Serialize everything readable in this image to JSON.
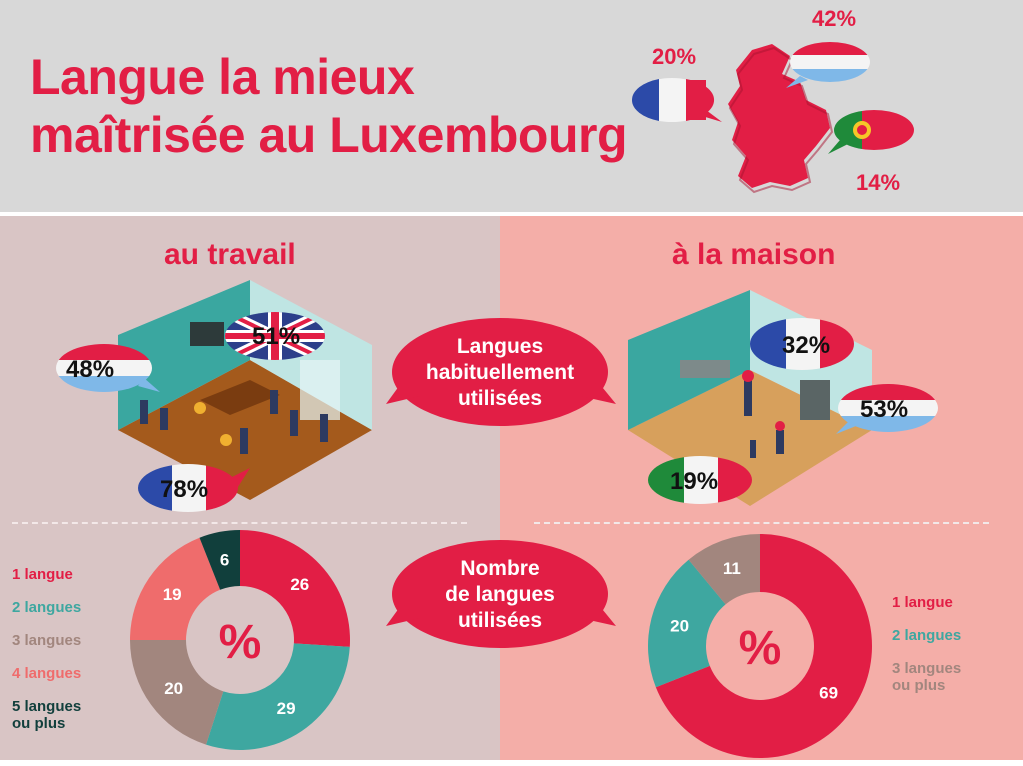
{
  "header": {
    "title_line1": "Langue la mieux",
    "title_line2": "maîtrisée au Luxembourg",
    "pct_fr": "20%",
    "pct_lu": "42%",
    "pct_pt": "14%"
  },
  "work": {
    "title": "au travail",
    "pct_en": "51%",
    "pct_lu": "48%",
    "pct_fr": "78%"
  },
  "home": {
    "title": "à la maison",
    "pct_fr": "32%",
    "pct_lu": "53%",
    "pct_pt": "19%"
  },
  "center": {
    "habitual_line1": "Langues",
    "habitual_line2": "habituellement",
    "habitual_line3": "utilisées",
    "number_line1": "Nombre",
    "number_line2": "de langues",
    "number_line3": "utilisées"
  },
  "colors": {
    "red": "#e21e45",
    "teal": "#3ea7a0",
    "brown": "#a2867e",
    "pink": "#ef6c6c",
    "dark_teal": "#113f3c"
  },
  "chart_data": [
    {
      "type": "pie",
      "subtype": "donut",
      "center_label": "%",
      "categories": [
        "1 langue",
        "2 langues",
        "3 langues",
        "4 langues",
        "5 langues ou plus"
      ],
      "values": [
        26,
        29,
        20,
        19,
        6
      ],
      "labels": [
        "26",
        "29",
        "20",
        "19",
        "6"
      ],
      "colors": [
        "#e21e45",
        "#3ea7a0",
        "#a2867e",
        "#ef6c6c",
        "#113f3c"
      ]
    },
    {
      "type": "pie",
      "subtype": "donut",
      "center_label": "%",
      "categories": [
        "1 langue",
        "2 langues",
        "3 langues ou plus"
      ],
      "values": [
        69,
        20,
        11
      ],
      "labels": [
        "69",
        "20",
        "11"
      ],
      "colors": [
        "#e21e45",
        "#3ea7a0",
        "#a2867e"
      ]
    }
  ]
}
